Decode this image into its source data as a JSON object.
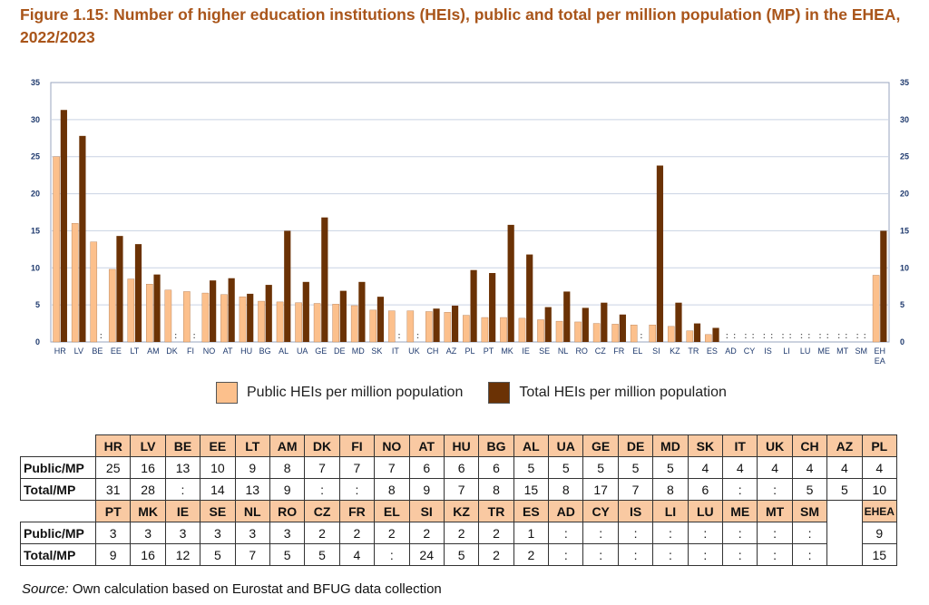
{
  "figure": {
    "title": "Figure 1.15: Number of higher education institutions (HEIs), public and total per million population (MP) in the EHEA, 2022/2023",
    "source_label": "Source:",
    "source_text": " Own calculation based on Eurostat and BFUG data collection"
  },
  "legend": {
    "public": "Public HEIs per million population",
    "total": "Total HEIs per million population"
  },
  "colors": {
    "public": "#fcc08c",
    "total": "#6b3205",
    "axis_text": "#1f3a6e",
    "grid": "#c9d2e3",
    "header_bg": "#f9c9a2"
  },
  "chart_data": {
    "type": "bar",
    "title": "Figure 1.15: Number of higher education institutions (HEIs), public and total per million population (MP) in the EHEA, 2022/2023",
    "ylim": [
      0,
      35
    ],
    "yticks": [
      0,
      5,
      10,
      15,
      20,
      25,
      30,
      35
    ],
    "categories": [
      "HR",
      "LV",
      "BE",
      "EE",
      "LT",
      "AM",
      "DK",
      "FI",
      "NO",
      "AT",
      "HU",
      "BG",
      "AL",
      "UA",
      "GE",
      "DE",
      "MD",
      "SK",
      "IT",
      "UK",
      "CH",
      "AZ",
      "PL",
      "PT",
      "MK",
      "IE",
      "SE",
      "NL",
      "RO",
      "CZ",
      "FR",
      "EL",
      "SI",
      "KZ",
      "TR",
      "ES",
      "AD",
      "CY",
      "IS",
      "LI",
      "LU",
      "ME",
      "MT",
      "SM",
      "EH EA"
    ],
    "series": [
      {
        "name": "Public HEIs per million population",
        "values": [
          25,
          16,
          13.5,
          9.8,
          8.5,
          7.8,
          7,
          6.8,
          6.6,
          6.4,
          6.1,
          5.5,
          5.4,
          5.3,
          5.2,
          5.1,
          4.9,
          4.3,
          4.2,
          4.2,
          4.1,
          4,
          3.6,
          3.3,
          3.3,
          3.2,
          3,
          2.8,
          2.7,
          2.5,
          2.4,
          2.3,
          2.3,
          2.1,
          1.5,
          1,
          null,
          null,
          null,
          null,
          null,
          null,
          null,
          null,
          9
        ]
      },
      {
        "name": "Total HEIs per million population",
        "values": [
          31.3,
          27.8,
          null,
          14.3,
          13.2,
          9.1,
          null,
          null,
          8.3,
          8.6,
          6.5,
          7.7,
          15,
          8.1,
          16.8,
          6.9,
          8.1,
          6.1,
          null,
          null,
          4.5,
          4.9,
          9.7,
          9.3,
          15.8,
          11.8,
          4.7,
          6.8,
          4.6,
          5.3,
          3.7,
          null,
          23.8,
          5.3,
          2.5,
          1.9,
          null,
          null,
          null,
          null,
          null,
          null,
          null,
          null,
          15
        ]
      }
    ]
  },
  "table": {
    "row_labels": [
      "Public/MP",
      "Total/MP"
    ],
    "part1": {
      "countries": [
        "HR",
        "LV",
        "BE",
        "EE",
        "LT",
        "AM",
        "DK",
        "FI",
        "NO",
        "AT",
        "HU",
        "BG",
        "AL",
        "UA",
        "GE",
        "DE",
        "MD",
        "SK",
        "IT",
        "UK",
        "CH",
        "AZ",
        "PL"
      ],
      "public": [
        "25",
        "16",
        "13",
        "10",
        "9",
        "8",
        "7",
        "7",
        "7",
        "6",
        "6",
        "6",
        "5",
        "5",
        "5",
        "5",
        "5",
        "4",
        "4",
        "4",
        "4",
        "4",
        "4"
      ],
      "total": [
        "31",
        "28",
        ":",
        "14",
        "13",
        "9",
        ":",
        ":",
        "8",
        "9",
        "7",
        "8",
        "15",
        "8",
        "17",
        "7",
        "8",
        "6",
        ":",
        ":",
        "5",
        "5",
        "10"
      ]
    },
    "part2": {
      "countries": [
        "PT",
        "MK",
        "IE",
        "SE",
        "NL",
        "RO",
        "CZ",
        "FR",
        "EL",
        "SI",
        "KZ",
        "TR",
        "ES",
        "AD",
        "CY",
        "IS",
        "LI",
        "LU",
        "ME",
        "MT",
        "SM"
      ],
      "public": [
        "3",
        "3",
        "3",
        "3",
        "3",
        "3",
        "2",
        "2",
        "2",
        "2",
        "2",
        "2",
        "1",
        ":",
        ":",
        ":",
        ":",
        ":",
        ":",
        ":",
        ":"
      ],
      "total": [
        "9",
        "16",
        "12",
        "5",
        "7",
        "5",
        "5",
        "4",
        ":",
        "24",
        "5",
        "2",
        "2",
        ":",
        ":",
        ":",
        ":",
        ":",
        ":",
        ":",
        ":"
      ],
      "ehea_label": "EHEA",
      "ehea_public": "9",
      "ehea_total": "15"
    }
  }
}
